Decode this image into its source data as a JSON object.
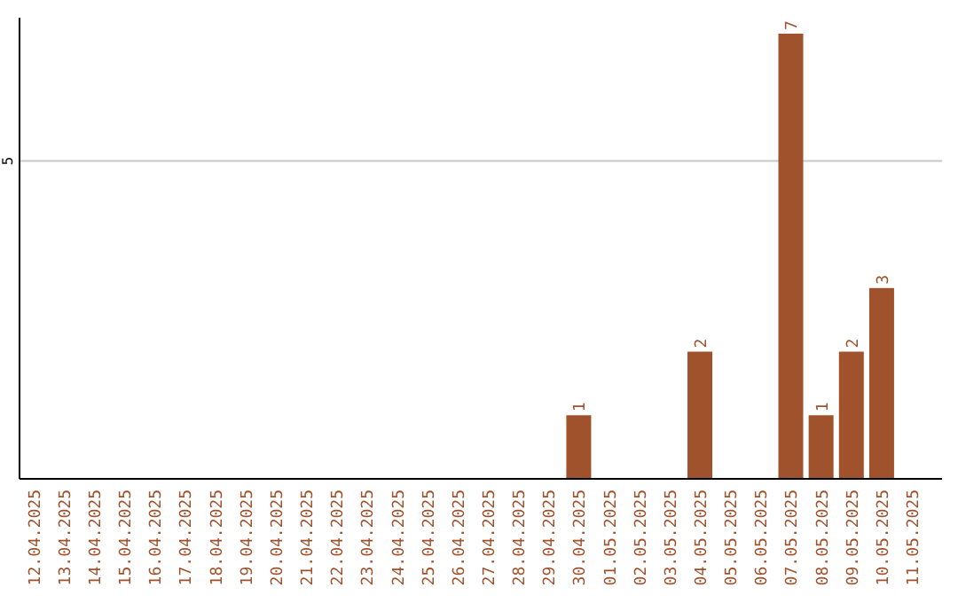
{
  "chart_data": {
    "type": "bar",
    "categories": [
      "12.04.2025",
      "13.04.2025",
      "14.04.2025",
      "15.04.2025",
      "16.04.2025",
      "17.04.2025",
      "18.04.2025",
      "19.04.2025",
      "20.04.2025",
      "21.04.2025",
      "22.04.2025",
      "23.04.2025",
      "24.04.2025",
      "25.04.2025",
      "26.04.2025",
      "27.04.2025",
      "28.04.2025",
      "29.04.2025",
      "30.04.2025",
      "01.05.2025",
      "02.05.2025",
      "03.05.2025",
      "04.05.2025",
      "05.05.2025",
      "06.05.2025",
      "07.05.2025",
      "08.05.2025",
      "09.05.2025",
      "10.05.2025",
      "11.05.2025"
    ],
    "values": [
      null,
      null,
      null,
      null,
      null,
      null,
      null,
      null,
      null,
      null,
      null,
      null,
      null,
      null,
      null,
      null,
      null,
      null,
      1,
      null,
      null,
      null,
      2,
      null,
      null,
      7,
      1,
      2,
      3,
      null
    ],
    "data_labels": true,
    "color": "#a0522d",
    "ylim": [
      0,
      7.25
    ],
    "ref_lines": [
      {
        "axis": "y",
        "value": 5,
        "label": "5",
        "color": "#c8c8c8"
      }
    ]
  }
}
